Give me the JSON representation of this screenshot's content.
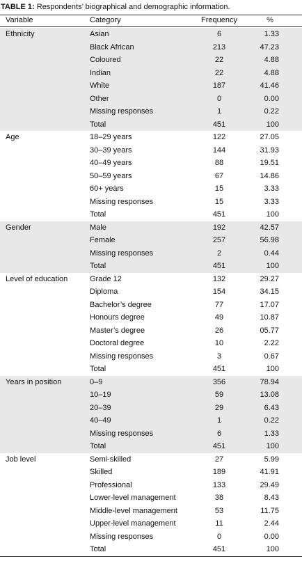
{
  "title": {
    "label": "TABLE 1:",
    "text": "Respondents’ biographical and demographic information."
  },
  "table": {
    "header": [
      "Variable",
      "Category",
      "Frequency",
      "%"
    ],
    "groups": [
      {
        "variable": "Ethnicity",
        "rows": [
          [
            "Asian",
            "6",
            "1.33"
          ],
          [
            "Black African",
            "213",
            "47.23"
          ],
          [
            "Coloured",
            "22",
            "4.88"
          ],
          [
            "Indian",
            "22",
            "4.88"
          ],
          [
            "White",
            "187",
            "41.46"
          ],
          [
            "Other",
            "0",
            "0.00"
          ],
          [
            "Missing responses",
            "1",
            "0.22"
          ],
          [
            "Total",
            "451",
            "100"
          ]
        ]
      },
      {
        "variable": "Age",
        "rows": [
          [
            "18–29 years",
            "122",
            "27.05"
          ],
          [
            "30–39 years",
            "144",
            "31.93"
          ],
          [
            "40–49 years",
            "88",
            "19.51"
          ],
          [
            "50–59 years",
            "67",
            "14.86"
          ],
          [
            "60+ years",
            "15",
            "3.33"
          ],
          [
            "Missing responses",
            "15",
            "3.33"
          ],
          [
            "Total",
            "451",
            "100"
          ]
        ]
      },
      {
        "variable": "Gender",
        "rows": [
          [
            "Male",
            "192",
            "42.57"
          ],
          [
            "Female",
            "257",
            "56.98"
          ],
          [
            "Missing responses",
            "2",
            "0.44"
          ],
          [
            "Total",
            "451",
            "100"
          ]
        ]
      },
      {
        "variable": "Level of education",
        "rows": [
          [
            "Grade 12",
            "132",
            "29.27"
          ],
          [
            "Diploma",
            "154",
            "34.15"
          ],
          [
            "Bachelor’s degree",
            "77",
            "17.07"
          ],
          [
            "Honours degree",
            "49",
            "10.87"
          ],
          [
            "Master’s degree",
            "26",
            "05.77"
          ],
          [
            "Doctoral degree",
            "10",
            "2.22"
          ],
          [
            "Missing responses",
            "3",
            "0.67"
          ],
          [
            "Total",
            "451",
            "100"
          ]
        ]
      },
      {
        "variable": "Years in position",
        "rows": [
          [
            "0–9",
            "356",
            "78.94"
          ],
          [
            "10–19",
            "59",
            "13.08"
          ],
          [
            "20–39",
            "29",
            "6.43"
          ],
          [
            "40–49",
            "1",
            "0.22"
          ],
          [
            "Missing responses",
            "6",
            "1.33"
          ],
          [
            "Total",
            "451",
            "100"
          ]
        ]
      },
      {
        "variable": "Job level",
        "rows": [
          [
            "Semi-skilled",
            "27",
            "5.99"
          ],
          [
            "Skilled",
            "189",
            "41.91"
          ],
          [
            "Professional",
            "133",
            "29.49"
          ],
          [
            "Lower-level management",
            "38",
            "8.43"
          ],
          [
            "Middle-level management",
            "53",
            "11.75"
          ],
          [
            "Upper-level management",
            "11",
            "2.44"
          ],
          [
            "Missing responses",
            "0",
            "0.00"
          ],
          [
            "Total",
            "451",
            "100"
          ]
        ]
      }
    ]
  }
}
